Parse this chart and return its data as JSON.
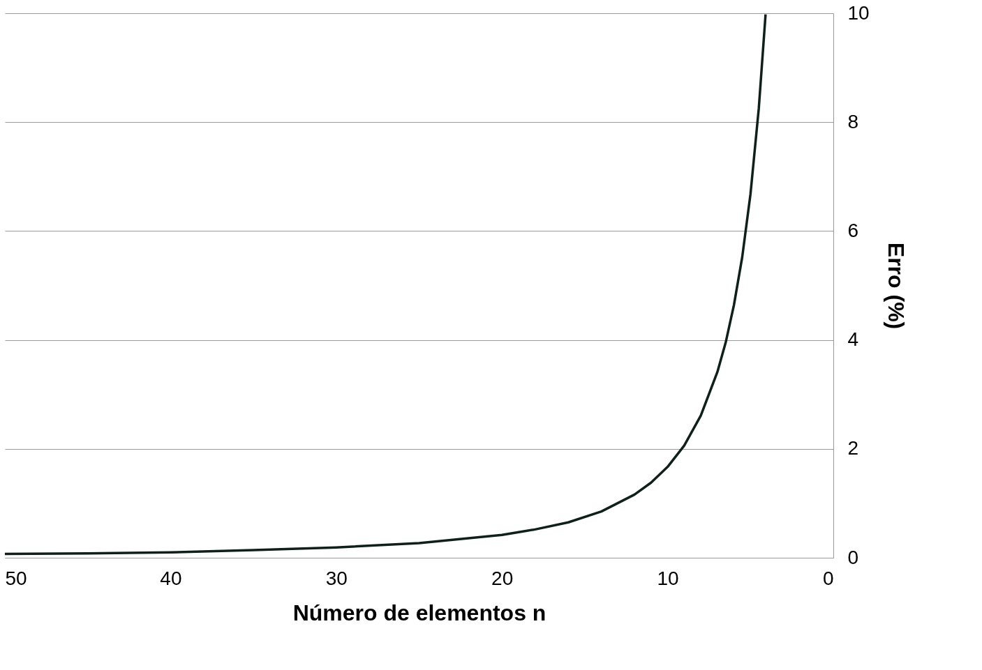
{
  "chart_data": {
    "type": "line",
    "xlabel": "Número de elementos n",
    "ylabel": "Erro (%)",
    "x": [
      50,
      45,
      40,
      35,
      30,
      25,
      20,
      18,
      16,
      14,
      12,
      11,
      10,
      9,
      8,
      7,
      6.5,
      6,
      5.5,
      5,
      4.5,
      4.09
    ],
    "series": [
      {
        "color": "#0f1f1c",
        "values": [
          0.07,
          0.08,
          0.1,
          0.14,
          0.19,
          0.27,
          0.42,
          0.52,
          0.65,
          0.85,
          1.16,
          1.38,
          1.67,
          2.06,
          2.61,
          3.41,
          3.95,
          4.64,
          5.52,
          6.68,
          8.25,
          9.98
        ]
      }
    ],
    "xlim": [
      50,
      0
    ],
    "xticks": [
      50,
      40,
      30,
      20,
      10,
      0
    ],
    "ylim": [
      0,
      10
    ],
    "yticks": [
      0,
      2,
      4,
      6,
      8,
      10
    ],
    "grid": "y",
    "marker": "none",
    "line_style": "solid"
  }
}
